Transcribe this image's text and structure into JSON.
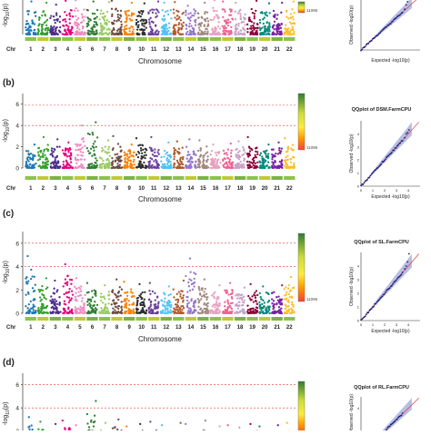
{
  "colors": {
    "threshold_line": "#e53935",
    "qq_points": "#1a237e",
    "qq_band": "#9fa8da",
    "qq_line": "#e53935",
    "chromosome_palette": [
      "#1f78b4",
      "#33a02c",
      "#4b2c8c",
      "#e6007e",
      "#f08ac0",
      "#2e7d32",
      "#9ccc65",
      "#6d4c41",
      "#ff7f00",
      "#2e2e2e",
      "#6a3d9a",
      "#4fc3f7",
      "#b15928",
      "#9575cd",
      "#a1887f",
      "#e8a0bf",
      "#f06292",
      "#c8a2c8",
      "#8e0038",
      "#00897b",
      "#7b1fa2",
      "#fdbf2d"
    ]
  },
  "icons": {
    "density_legend": "gradient-colorbar"
  },
  "panels": [
    {
      "id": "a",
      "label": "",
      "qq_title": "",
      "legend_max": "11096",
      "thresholds": [],
      "manhattan_ylim": [
        0,
        6
      ],
      "yticks": [],
      "xlabel": "Chromosome",
      "chr_label": "Chr",
      "chromosomes": [
        "1",
        "2",
        "3",
        "4",
        "5",
        "6",
        "7",
        "8",
        "9",
        "10",
        "11",
        "12",
        "13",
        "14",
        "15",
        "16",
        "17",
        "18",
        "19",
        "20",
        "21",
        "22"
      ],
      "peaks": [
        5.2,
        5.0,
        4.7,
        5.3,
        5.4,
        5.2,
        5.1,
        5.3,
        5.0,
        4.9,
        5.2,
        5.0,
        5.1,
        5.8,
        5.0,
        5.4,
        5.2,
        5.0,
        5.3,
        4.9,
        5.0,
        5.2
      ],
      "qq_xlabel": "Expected  -log10(p)",
      "qq_ylabel": "Observed  -log10(p)",
      "qq_xticks": [],
      "qq_yticks": [],
      "qq_lim": [
        0,
        5
      ],
      "qq_tail": [
        3.8,
        4.2,
        4.5,
        4.9
      ]
    },
    {
      "id": "b",
      "label": "(b)",
      "qq_title": "QQplot of DSM.FarmCPU",
      "legend_max": "11096",
      "thresholds": [
        5.9,
        4.0
      ],
      "manhattan_ylim": [
        0,
        7
      ],
      "yticks": [
        "0",
        "2",
        "4",
        "6"
      ],
      "xlabel": "Chromosome",
      "chr_label": "Chr",
      "chromosomes": [
        "1",
        "2",
        "3",
        "4",
        "5",
        "6",
        "7",
        "8",
        "9",
        "10",
        "11",
        "12",
        "13",
        "14",
        "15",
        "16",
        "17",
        "18",
        "19",
        "20",
        "21",
        "22"
      ],
      "peaks": [
        2.2,
        2.9,
        2.7,
        2.4,
        4.0,
        4.3,
        2.6,
        3.0,
        2.2,
        2.8,
        2.9,
        2.4,
        2.5,
        2.7,
        2.6,
        2.2,
        2.3,
        2.5,
        2.9,
        2.2,
        2.4,
        2.8
      ],
      "qq_xlabel": "Expected  -log10(p)",
      "qq_ylabel": "Observed  -log10(p)",
      "qq_xticks": [
        "0",
        "1",
        "2",
        "3",
        "4"
      ],
      "qq_yticks": [
        "0",
        "1",
        "2",
        "3",
        "4"
      ],
      "qq_lim": [
        0,
        5
      ],
      "qq_tail": [
        3.7,
        4.0,
        4.1,
        4.3
      ]
    },
    {
      "id": "c",
      "label": "(c)",
      "qq_title": "QQplot of SL.FarmCPU",
      "legend_max": "11096",
      "thresholds": [
        6.0,
        4.0
      ],
      "manhattan_ylim": [
        0,
        7
      ],
      "yticks": [
        "0",
        "2",
        "4",
        "6"
      ],
      "xlabel": "Chromosome",
      "chr_label": "Chr",
      "chromosomes": [
        "1",
        "2",
        "3",
        "4",
        "5",
        "6",
        "7",
        "8",
        "9",
        "10",
        "11",
        "12",
        "13",
        "14",
        "15",
        "16",
        "17",
        "18",
        "19",
        "20",
        "21",
        "22"
      ],
      "peaks": [
        4.9,
        3.0,
        2.8,
        4.2,
        3.0,
        2.6,
        2.4,
        2.9,
        2.7,
        2.5,
        2.6,
        2.3,
        2.8,
        4.7,
        2.9,
        2.4,
        2.6,
        2.2,
        2.5,
        2.3,
        2.4,
        3.1
      ],
      "qq_xlabel": "Expected  -log10(p)",
      "qq_ylabel": "Observed  -log10(p)",
      "qq_xticks": [
        "0",
        "1",
        "2",
        "3",
        "4"
      ],
      "qq_yticks": [
        "0",
        "1",
        "2",
        "3",
        "4"
      ],
      "qq_lim": [
        0,
        5
      ],
      "qq_tail": [
        3.8,
        4.0,
        4.3,
        4.9
      ]
    },
    {
      "id": "d",
      "label": "(d)",
      "qq_title": "QQplot of RL.FarmCPU",
      "legend_max": "11096",
      "thresholds": [
        6.0,
        4.0
      ],
      "manhattan_ylim": [
        0,
        7
      ],
      "yticks": [
        "2",
        "4",
        "6"
      ],
      "xlabel": "",
      "chr_label": "",
      "chromosomes": [],
      "peaks": [
        3.2,
        2.8,
        2.6,
        2.9,
        2.5,
        4.6,
        2.7,
        3.0,
        2.4,
        2.6,
        2.8,
        2.5,
        2.7,
        2.6,
        2.9,
        2.4,
        2.5,
        2.3,
        2.6,
        2.4,
        2.5,
        2.7
      ],
      "qq_xlabel": "",
      "qq_ylabel": "Observed  -log10(p)",
      "qq_xticks": [],
      "qq_yticks": [
        "4"
      ],
      "qq_lim": [
        0,
        5
      ],
      "qq_tail": []
    }
  ],
  "chart_data": [
    {
      "type": "scatter",
      "title": "",
      "xlabel": "Chromosome",
      "ylabel": "-log10(p)",
      "ylim": [
        0,
        6
      ],
      "categories": [
        "1",
        "2",
        "3",
        "4",
        "5",
        "6",
        "7",
        "8",
        "9",
        "10",
        "11",
        "12",
        "13",
        "14",
        "15",
        "16",
        "17",
        "18",
        "19",
        "20",
        "21",
        "22"
      ],
      "top_values": [
        5.2,
        5.0,
        4.7,
        5.3,
        5.4,
        5.2,
        5.1,
        5.3,
        5.0,
        4.9,
        5.2,
        5.0,
        5.1,
        5.8,
        5.0,
        5.4,
        5.2,
        5.0,
        5.3,
        4.9,
        5.0,
        5.2
      ],
      "grid": false,
      "legend_placement": "right"
    },
    {
      "type": "scatter",
      "title": "",
      "xlabel": "Chromosome",
      "ylabel": "-log10(p)",
      "ylim": [
        0,
        7
      ],
      "thresholds": [
        5.9,
        4.0
      ],
      "categories": [
        "1",
        "2",
        "3",
        "4",
        "5",
        "6",
        "7",
        "8",
        "9",
        "10",
        "11",
        "12",
        "13",
        "14",
        "15",
        "16",
        "17",
        "18",
        "19",
        "20",
        "21",
        "22"
      ],
      "top_values": [
        2.2,
        2.9,
        2.7,
        2.4,
        4.0,
        4.3,
        2.6,
        3.0,
        2.2,
        2.8,
        2.9,
        2.4,
        2.5,
        2.7,
        2.6,
        2.2,
        2.3,
        2.5,
        2.9,
        2.2,
        2.4,
        2.8
      ],
      "grid": false,
      "legend_placement": "right"
    },
    {
      "type": "scatter",
      "title": "QQplot of DSM.FarmCPU",
      "xlabel": "Expected -log10(p)",
      "ylabel": "Observed -log10(p)",
      "xlim": [
        0,
        5
      ],
      "ylim": [
        0,
        5
      ],
      "tail_values": [
        3.7,
        4.0,
        4.1,
        4.3
      ]
    },
    {
      "type": "scatter",
      "title": "",
      "xlabel": "Chromosome",
      "ylabel": "-log10(p)",
      "ylim": [
        0,
        7
      ],
      "thresholds": [
        6.0,
        4.0
      ],
      "categories": [
        "1",
        "2",
        "3",
        "4",
        "5",
        "6",
        "7",
        "8",
        "9",
        "10",
        "11",
        "12",
        "13",
        "14",
        "15",
        "16",
        "17",
        "18",
        "19",
        "20",
        "21",
        "22"
      ],
      "top_values": [
        4.9,
        3.0,
        2.8,
        4.2,
        3.0,
        2.6,
        2.4,
        2.9,
        2.7,
        2.5,
        2.6,
        2.3,
        2.8,
        4.7,
        2.9,
        2.4,
        2.6,
        2.2,
        2.5,
        2.3,
        2.4,
        3.1
      ],
      "grid": false,
      "legend_placement": "right"
    },
    {
      "type": "scatter",
      "title": "QQplot of SL.FarmCPU",
      "xlabel": "Expected -log10(p)",
      "ylabel": "Observed -log10(p)",
      "xlim": [
        0,
        5
      ],
      "ylim": [
        0,
        5
      ],
      "tail_values": [
        3.8,
        4.0,
        4.3,
        4.9
      ]
    },
    {
      "type": "scatter",
      "title": "",
      "xlabel": "",
      "ylabel": "-log10(p)",
      "ylim": [
        0,
        7
      ],
      "thresholds": [
        6.0,
        4.0
      ],
      "categories": [],
      "grid": false,
      "legend_placement": "right"
    },
    {
      "type": "scatter",
      "title": "QQplot of RL.FarmCPU",
      "xlabel": "",
      "ylabel": "Observed -log10(p)",
      "xlim": [
        0,
        5
      ],
      "ylim": [
        0,
        5
      ]
    }
  ]
}
